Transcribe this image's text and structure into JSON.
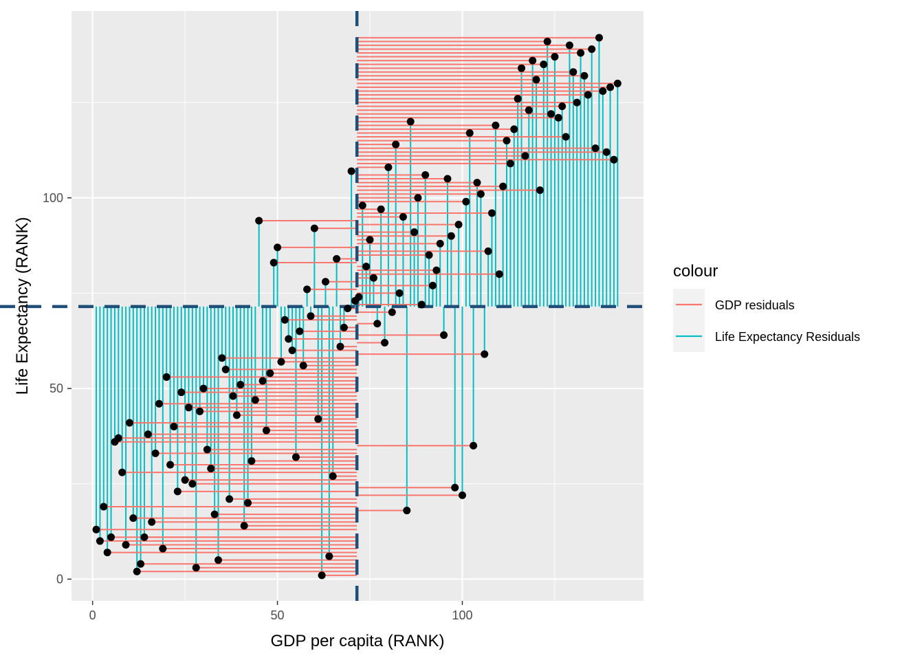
{
  "chart_data": {
    "type": "scatter",
    "xlabel": "GDP per capita (RANK)",
    "ylabel": "Life Expectancy (RANK)",
    "xlim": [
      -5.7,
      149
    ],
    "ylim": [
      -5.7,
      149
    ],
    "x_ticks": [
      0,
      50,
      100
    ],
    "y_ticks": [
      0,
      50,
      100
    ],
    "x_tick_labels": [
      "0",
      "50",
      "100"
    ],
    "y_tick_labels": [
      "0",
      "50",
      "100"
    ],
    "reference_lines": {
      "x_mean": 71.5,
      "y_mean": 71.5
    },
    "grid": true,
    "legend": {
      "title": "colour",
      "position": "right",
      "entries": [
        {
          "label": "GDP residuals",
          "color": "#F8766D"
        },
        {
          "label": "Life Expectancy Residuals",
          "color": "#00BFC4"
        }
      ]
    },
    "colors": {
      "gdp_residuals": "#F8766D",
      "life_residuals": "#00BFC4",
      "mean_line": "#1F4E79",
      "points": "#000000",
      "panel": "#EBEBEB",
      "grid": "#FFFFFF"
    },
    "points": [
      [
        1,
        13
      ],
      [
        2,
        10
      ],
      [
        3,
        19
      ],
      [
        4,
        7
      ],
      [
        5,
        11
      ],
      [
        6,
        36
      ],
      [
        7,
        37
      ],
      [
        8,
        28
      ],
      [
        9,
        9
      ],
      [
        10,
        41
      ],
      [
        11,
        16
      ],
      [
        12,
        2
      ],
      [
        13,
        4
      ],
      [
        14,
        11
      ],
      [
        15,
        38
      ],
      [
        16,
        15
      ],
      [
        17,
        33
      ],
      [
        18,
        46
      ],
      [
        19,
        8
      ],
      [
        20,
        53
      ],
      [
        21,
        30
      ],
      [
        22,
        40
      ],
      [
        23,
        23
      ],
      [
        24,
        49
      ],
      [
        25,
        26
      ],
      [
        26,
        45
      ],
      [
        27,
        25
      ],
      [
        28,
        3
      ],
      [
        29,
        44
      ],
      [
        30,
        50
      ],
      [
        31,
        34
      ],
      [
        32,
        29
      ],
      [
        33,
        17
      ],
      [
        34,
        5
      ],
      [
        35,
        58
      ],
      [
        36,
        55
      ],
      [
        37,
        21
      ],
      [
        38,
        48
      ],
      [
        39,
        43
      ],
      [
        40,
        51
      ],
      [
        41,
        14
      ],
      [
        42,
        20
      ],
      [
        43,
        31
      ],
      [
        44,
        47
      ],
      [
        45,
        94
      ],
      [
        46,
        52
      ],
      [
        47,
        39
      ],
      [
        48,
        54
      ],
      [
        49,
        83
      ],
      [
        50,
        87
      ],
      [
        51,
        57
      ],
      [
        52,
        68
      ],
      [
        53,
        63
      ],
      [
        54,
        60
      ],
      [
        55,
        32
      ],
      [
        56,
        65
      ],
      [
        57,
        56
      ],
      [
        58,
        76
      ],
      [
        59,
        69
      ],
      [
        60,
        92
      ],
      [
        61,
        42
      ],
      [
        62,
        1
      ],
      [
        63,
        78
      ],
      [
        64,
        6
      ],
      [
        65,
        27
      ],
      [
        66,
        84
      ],
      [
        67,
        61
      ],
      [
        68,
        66
      ],
      [
        69,
        71
      ],
      [
        70,
        107
      ],
      [
        71,
        73
      ],
      [
        72,
        74
      ],
      [
        73,
        98
      ],
      [
        74,
        82
      ],
      [
        75,
        89
      ],
      [
        76,
        79
      ],
      [
        77,
        67
      ],
      [
        78,
        97
      ],
      [
        79,
        62
      ],
      [
        80,
        108
      ],
      [
        81,
        70
      ],
      [
        82,
        114
      ],
      [
        83,
        75
      ],
      [
        84,
        95
      ],
      [
        85,
        18
      ],
      [
        86,
        120
      ],
      [
        87,
        91
      ],
      [
        88,
        100
      ],
      [
        89,
        72
      ],
      [
        90,
        106
      ],
      [
        91,
        85
      ],
      [
        92,
        77
      ],
      [
        93,
        81
      ],
      [
        94,
        88
      ],
      [
        95,
        64
      ],
      [
        96,
        105
      ],
      [
        97,
        90
      ],
      [
        98,
        24
      ],
      [
        99,
        93
      ],
      [
        100,
        22
      ],
      [
        101,
        99
      ],
      [
        102,
        117
      ],
      [
        103,
        35
      ],
      [
        104,
        104
      ],
      [
        105,
        101
      ],
      [
        106,
        59
      ],
      [
        107,
        86
      ],
      [
        108,
        96
      ],
      [
        109,
        119
      ],
      [
        110,
        80
      ],
      [
        111,
        103
      ],
      [
        112,
        115
      ],
      [
        113,
        109
      ],
      [
        114,
        118
      ],
      [
        115,
        126
      ],
      [
        116,
        134
      ],
      [
        117,
        111
      ],
      [
        118,
        123
      ],
      [
        119,
        136
      ],
      [
        120,
        131
      ],
      [
        121,
        102
      ],
      [
        122,
        135
      ],
      [
        123,
        141
      ],
      [
        124,
        122
      ],
      [
        125,
        137
      ],
      [
        126,
        121
      ],
      [
        127,
        124
      ],
      [
        128,
        116
      ],
      [
        129,
        140
      ],
      [
        130,
        133
      ],
      [
        131,
        125
      ],
      [
        132,
        138
      ],
      [
        133,
        132
      ],
      [
        134,
        127
      ],
      [
        135,
        139
      ],
      [
        136,
        113
      ],
      [
        137,
        142
      ],
      [
        138,
        128
      ],
      [
        139,
        112
      ],
      [
        140,
        129
      ],
      [
        141,
        110
      ],
      [
        142,
        130
      ]
    ]
  }
}
